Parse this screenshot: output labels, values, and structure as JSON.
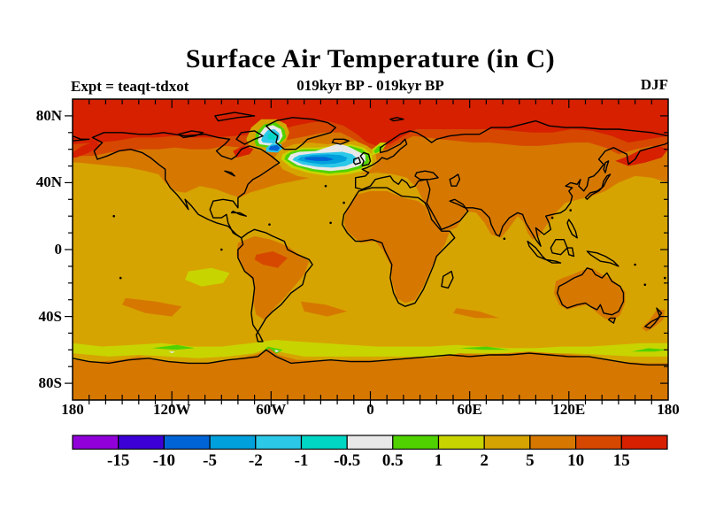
{
  "header": {
    "title": "Surface Air Temperature (in C)",
    "subtitle": "019kyr BP - 019kyr BP",
    "experiment_label": "Expt = teaqt-tdxot",
    "season_label": "DJF"
  },
  "map": {
    "lat_ticks": [
      {
        "label": "80N",
        "lat": 80
      },
      {
        "label": "40N",
        "lat": 40
      },
      {
        "label": "0",
        "lat": 0
      },
      {
        "label": "40S",
        "lat": -40
      },
      {
        "label": "80S",
        "lat": -80
      }
    ],
    "lon_ticks": [
      {
        "label": "180",
        "lon": -180
      },
      {
        "label": "120W",
        "lon": -120
      },
      {
        "label": "60W",
        "lon": -60
      },
      {
        "label": "0",
        "lon": 0
      },
      {
        "label": "60E",
        "lon": 60
      },
      {
        "label": "120E",
        "lon": 120
      },
      {
        "label": "180",
        "lon": 180
      }
    ],
    "minor_tick_interval_deg": 10,
    "background_color_index": 9
  },
  "colorbar": {
    "colors": [
      "#9100D9",
      "#3C00D6",
      "#0064D6",
      "#00A0DC",
      "#2CC8E8",
      "#00D6C4",
      "#E8E8E8",
      "#50D200",
      "#C8D400",
      "#D6A400",
      "#D67800",
      "#D64800",
      "#D62000"
    ],
    "boundary_labels": [
      "-15",
      "-10",
      "-5",
      "-2",
      "-1",
      "-0.5",
      "0.5",
      "1",
      "2",
      "5",
      "10",
      "15"
    ]
  },
  "chart_data": {
    "type": "heatmap",
    "title": "Surface Air Temperature (in C)",
    "subtitle": "019kyr BP - 019kyr BP",
    "annotations": [
      "Expt = teaqt-tdxot",
      "DJF"
    ],
    "projection": "equirectangular world map, lon -180..180, lat -90..90",
    "x_tick_labels": [
      "180",
      "120W",
      "60W",
      "0",
      "60E",
      "120E",
      "180"
    ],
    "y_tick_labels": [
      "80N",
      "40N",
      "0",
      "40S",
      "80S"
    ],
    "color_levels_degC": [
      -15,
      -10,
      -5,
      -2,
      -1,
      -0.5,
      0.5,
      1,
      2,
      5,
      10,
      15
    ],
    "palette": [
      "#9100D9",
      "#3C00D6",
      "#0064D6",
      "#00A0DC",
      "#2CC8E8",
      "#00D6C4",
      "#E8E8E8",
      "#50D200",
      "#C8D400",
      "#D6A400",
      "#D67800",
      "#D64800",
      "#D62000"
    ],
    "legend_position": "bottom",
    "grid": false,
    "notable_features": [
      "Most of the globe sits in the +2 to +5 C band (goldenrod)",
      "+5 to +10 C (orange) over mid/high northern latitudes, South America, Africa, Arabia, Australia and Antarctica interior",
      "+10 to +15 C and greater than +15 C (dark orange / red) across the Arctic, Bering Sea, Sea of Okhotsk, NE Canada and Norwegian Sea",
      "Strong cold anomaly (-10 to -0.5 C; blue/cyan cores ringed by white, green and yellow-green) over the North Atlantic south of Iceland, Baffin Bay and the Labrador Sea",
      "Weak +0.5 to +2 C (green / yellow-green) circumpolar band along the Antarctic coast near 60S"
    ]
  }
}
